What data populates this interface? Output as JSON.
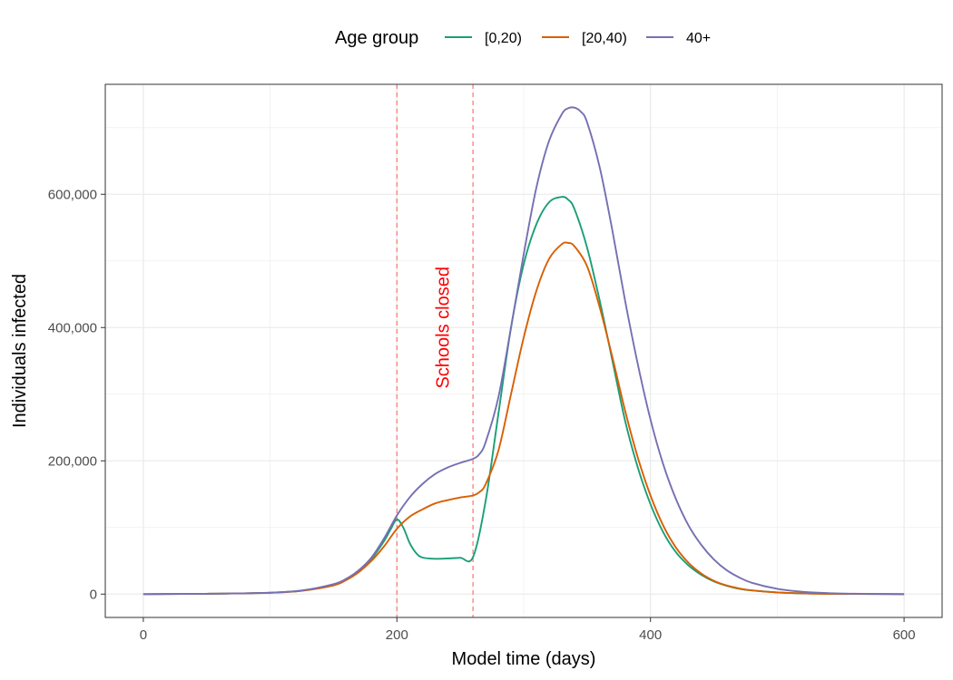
{
  "chart_data": {
    "type": "line",
    "xlabel": "Model time (days)",
    "ylabel": "Individuals infected",
    "xlim": [
      -30,
      630
    ],
    "ylim": [
      -35000,
      765000
    ],
    "x_ticks": [
      0,
      200,
      400,
      600
    ],
    "x_tick_labels": [
      "0",
      "200",
      "400",
      "600"
    ],
    "y_ticks": [
      0,
      200000,
      400000,
      600000
    ],
    "y_tick_labels": [
      "0",
      "200,000",
      "400,000",
      "600,000"
    ],
    "grid": true,
    "legend": {
      "title": "Age group",
      "position": "top"
    },
    "series": [
      {
        "name": "[0,20)",
        "color": "#1b9e77",
        "x": [
          0,
          50,
          100,
          125,
          150,
          160,
          170,
          180,
          190,
          195,
          200,
          205,
          210,
          215,
          220,
          230,
          240,
          250,
          260,
          270,
          280,
          290,
          300,
          310,
          320,
          330,
          335,
          340,
          350,
          360,
          370,
          380,
          390,
          400,
          410,
          420,
          430,
          440,
          450,
          460,
          470,
          480,
          500,
          520,
          540,
          560,
          580,
          600
        ],
        "y": [
          0,
          500,
          2000,
          5000,
          14000,
          22000,
          35000,
          53000,
          80000,
          97000,
          112000,
          100000,
          77000,
          62000,
          55000,
          53000,
          53500,
          54500,
          55500,
          140000,
          270000,
          400000,
          495000,
          555000,
          588000,
          596000,
          592000,
          578000,
          520000,
          440000,
          350000,
          260000,
          190000,
          135000,
          93000,
          63000,
          43000,
          29000,
          19000,
          12500,
          8000,
          5500,
          2500,
          1100,
          500,
          220,
          100,
          0
        ]
      },
      {
        "name": "[20,40)",
        "color": "#d95f02",
        "x": [
          0,
          50,
          100,
          125,
          150,
          160,
          170,
          180,
          190,
          200,
          210,
          220,
          230,
          240,
          250,
          260,
          265,
          270,
          280,
          290,
          300,
          310,
          320,
          330,
          335,
          340,
          350,
          360,
          370,
          380,
          390,
          400,
          410,
          420,
          430,
          440,
          450,
          460,
          470,
          480,
          500,
          520,
          540,
          560,
          580,
          600
        ],
        "y": [
          0,
          500,
          2000,
          5000,
          13000,
          21000,
          33000,
          50000,
          72000,
          98000,
          116000,
          127000,
          136000,
          141000,
          145000,
          148000,
          153000,
          165000,
          215000,
          300000,
          385000,
          455000,
          503000,
          525000,
          527000,
          522000,
          492000,
          430000,
          355000,
          275000,
          205000,
          148000,
          103000,
          70000,
          47000,
          31000,
          20000,
          13000,
          8500,
          5500,
          2500,
          1100,
          500,
          220,
          100,
          0
        ]
      },
      {
        "name": "40+",
        "color": "#7570b3",
        "x": [
          0,
          50,
          100,
          125,
          150,
          160,
          170,
          180,
          190,
          200,
          210,
          220,
          230,
          240,
          250,
          260,
          265,
          270,
          280,
          290,
          300,
          310,
          320,
          330,
          335,
          340,
          345,
          350,
          360,
          370,
          380,
          390,
          400,
          410,
          420,
          430,
          440,
          450,
          460,
          470,
          480,
          500,
          520,
          540,
          560,
          580,
          600
        ],
        "y": [
          0,
          500,
          2200,
          5500,
          15000,
          23000,
          36000,
          55000,
          84000,
          118000,
          145000,
          165000,
          180000,
          190000,
          197000,
          203000,
          210000,
          228000,
          295000,
          400000,
          510000,
          610000,
          680000,
          720000,
          729000,
          730000,
          724000,
          708000,
          640000,
          545000,
          440000,
          345000,
          262000,
          195000,
          143000,
          103000,
          74000,
          52000,
          36000,
          25000,
          17000,
          8000,
          3500,
          1500,
          600,
          250,
          0
        ]
      }
    ],
    "vlines": [
      {
        "x": 200,
        "color": "#f8766d"
      },
      {
        "x": 260,
        "color": "#f8766d"
      }
    ],
    "annotation": {
      "text": "Schools closed",
      "x": 237,
      "y": 400000,
      "color": "#ff0000"
    }
  }
}
